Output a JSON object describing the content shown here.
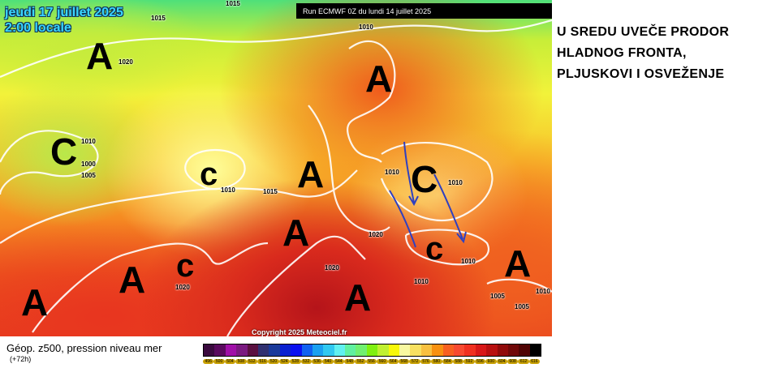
{
  "map": {
    "date": "jeudi 17 juillet 2025",
    "time": "2:00 locale",
    "run": "Run ECMWF 0Z du lundi 14 juillet 2025",
    "copyright": "Copyright 2025 Meteociel.fr",
    "isobar_labels": [
      "1015",
      "1015",
      "1010",
      "1020",
      "1010",
      "1000",
      "1005",
      "1010",
      "1015",
      "1010",
      "1010",
      "1020",
      "1020",
      "1020",
      "1010",
      "1010",
      "1005",
      "1005",
      "1010"
    ],
    "pressure_centers": [
      "A",
      "C",
      "c",
      "A",
      "A",
      "C",
      "A",
      "A",
      "c",
      "c",
      "A",
      "A",
      "A"
    ]
  },
  "legend": {
    "title": "Géop. z500, pression niveau mer",
    "subtitle": "(+72h)",
    "values": [
      "496",
      "500",
      "504",
      "508",
      "512",
      "516",
      "520",
      "524",
      "528",
      "532",
      "536",
      "540",
      "544",
      "548",
      "552",
      "556",
      "560",
      "564",
      "568",
      "572",
      "576",
      "580",
      "584",
      "588",
      "592",
      "596",
      "600",
      "604",
      "608",
      "612",
      "616"
    ],
    "colors": [
      "#3a0a3e",
      "#5a0a5e",
      "#a010a8",
      "#7a1a80",
      "#5a1040",
      "#303070",
      "#1a3a9a",
      "#0a20d0",
      "#0a10f0",
      "#1060f0",
      "#1aa0f0",
      "#30c8f0",
      "#60f0f0",
      "#60f0a0",
      "#70f070",
      "#80f010",
      "#c0f030",
      "#f8f808",
      "#f8f8a0",
      "#f8e060",
      "#f8c040",
      "#f89010",
      "#f86020",
      "#f84a30",
      "#f03020",
      "#d81818",
      "#b81010",
      "#900a0a",
      "#700808",
      "#500404",
      "#000000"
    ]
  },
  "caption": "U SREDU UVEČE PRODOR HLADNOG FRONTA, PLJUSKOVI I OSVEŽENJE"
}
